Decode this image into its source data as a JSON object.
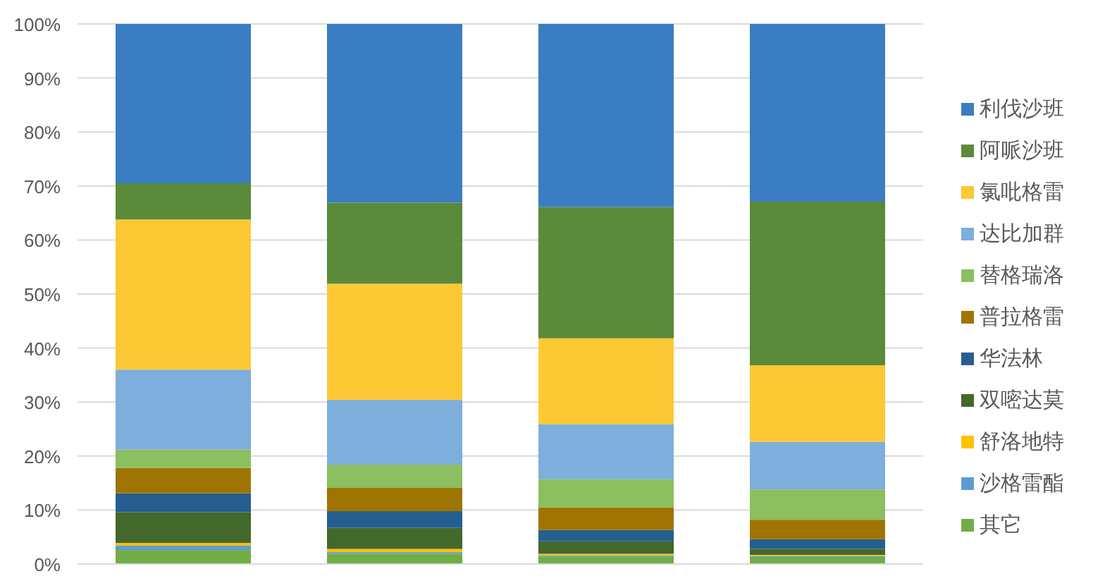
{
  "chart_data": {
    "type": "bar",
    "stacked": true,
    "categories": [
      null,
      null,
      null,
      null
    ],
    "series": [
      {
        "name": "其它",
        "color": "#70ad47",
        "values": [
          2.6,
          1.9,
          1.4,
          1.3
        ]
      },
      {
        "name": "沙格雷酯",
        "color": "#5b9bd5",
        "values": [
          0.8,
          0.3,
          0.2,
          0.2
        ]
      },
      {
        "name": "舒洛地特",
        "color": "#ffc000",
        "values": [
          0.5,
          0.6,
          0.3,
          0.2
        ]
      },
      {
        "name": "双嘧达莫",
        "color": "#43682b",
        "values": [
          5.7,
          3.9,
          2.3,
          1.1
        ]
      },
      {
        "name": "华法林",
        "color": "#255e91",
        "values": [
          3.5,
          3.1,
          2.1,
          1.8
        ]
      },
      {
        "name": "普拉格雷",
        "color": "#a07400",
        "values": [
          4.7,
          4.3,
          4.2,
          3.6
        ]
      },
      {
        "name": "替格瑞洛",
        "color": "#8bbf5f",
        "values": [
          3.4,
          4.3,
          5.2,
          5.6
        ]
      },
      {
        "name": "达比加群",
        "color": "#7eaedc",
        "values": [
          14.8,
          12.0,
          10.2,
          8.8
        ]
      },
      {
        "name": "氯吡格雷",
        "color": "#fcc934",
        "values": [
          27.8,
          21.5,
          15.9,
          14.2
        ]
      },
      {
        "name": "阿哌沙班",
        "color": "#5b8a3a",
        "values": [
          6.7,
          15.0,
          24.3,
          30.3
        ]
      },
      {
        "name": "利伐沙班",
        "color": "#3a7dc2",
        "values": [
          29.5,
          33.1,
          33.9,
          32.9
        ]
      }
    ],
    "ylim": [
      0,
      100
    ],
    "yticks": [
      {
        "value": 0,
        "label": "0%"
      },
      {
        "value": 10,
        "label": "10%"
      },
      {
        "value": 20,
        "label": "20%"
      },
      {
        "value": 30,
        "label": "30%"
      },
      {
        "value": 40,
        "label": "40%"
      },
      {
        "value": 50,
        "label": "50%"
      },
      {
        "value": 60,
        "label": "60%"
      },
      {
        "value": 70,
        "label": "70%"
      },
      {
        "value": 80,
        "label": "80%"
      },
      {
        "value": 90,
        "label": "90%"
      },
      {
        "value": 100,
        "label": "100%"
      }
    ],
    "grid": "y",
    "legend": "right"
  }
}
